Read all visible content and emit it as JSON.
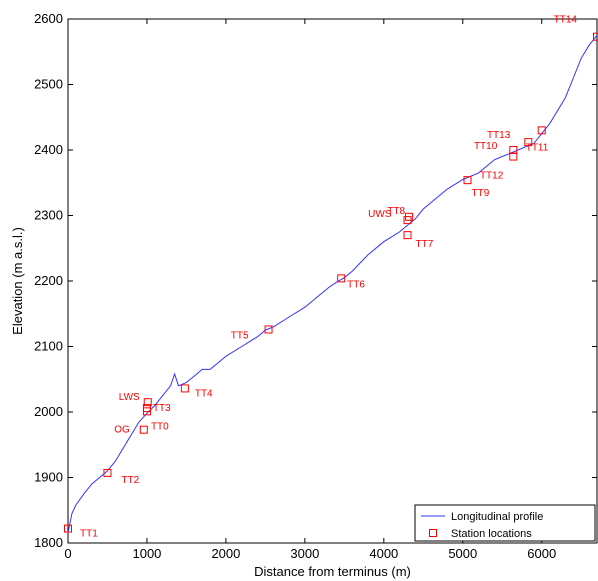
{
  "chart_data": {
    "type": "line",
    "xlabel": "Distance from terminus (m)",
    "ylabel": "Elevation (m a.s.l.)",
    "xlim": [
      0,
      6700
    ],
    "ylim": [
      1800,
      2600
    ],
    "x_ticks": [
      0,
      1000,
      2000,
      3000,
      4000,
      5000,
      6000
    ],
    "y_ticks": [
      1800,
      1900,
      2000,
      2100,
      2200,
      2300,
      2400,
      2500,
      2600
    ],
    "grid": false,
    "legend": {
      "placement": "bottom-right",
      "entries": [
        "Longitudinal profile",
        "Station locations"
      ]
    },
    "colors": {
      "profile": "#3333ff",
      "stations": "#ff0000"
    },
    "series": [
      {
        "name": "Longitudinal profile",
        "type": "line",
        "x": [
          0,
          50,
          100,
          200,
          300,
          400,
          500,
          600,
          700,
          800,
          900,
          1000,
          1100,
          1200,
          1300,
          1350,
          1400,
          1500,
          1600,
          1700,
          1800,
          1900,
          2000,
          2200,
          2400,
          2500,
          2600,
          2800,
          3000,
          3200,
          3300,
          3400,
          3500,
          3600,
          3800,
          4000,
          4200,
          4300,
          4400,
          4500,
          4700,
          4800,
          5000,
          5200,
          5400,
          5500,
          5600,
          5700,
          5800,
          5900,
          6000,
          6100,
          6200,
          6300,
          6400,
          6500,
          6600,
          6700
        ],
        "y": [
          1815,
          1845,
          1858,
          1875,
          1890,
          1900,
          1910,
          1925,
          1945,
          1965,
          1985,
          1998,
          2010,
          2025,
          2040,
          2058,
          2040,
          2045,
          2055,
          2065,
          2065,
          2075,
          2085,
          2100,
          2115,
          2125,
          2130,
          2145,
          2160,
          2180,
          2190,
          2198,
          2205,
          2215,
          2240,
          2260,
          2275,
          2285,
          2295,
          2310,
          2330,
          2340,
          2355,
          2365,
          2385,
          2390,
          2395,
          2400,
          2405,
          2410,
          2425,
          2440,
          2460,
          2480,
          2510,
          2540,
          2560,
          2575
        ]
      },
      {
        "name": "Station locations",
        "type": "scatter",
        "points": [
          {
            "label": "TT1",
            "x": 0,
            "y": 1822
          },
          {
            "label": "TT2",
            "x": 500,
            "y": 1907
          },
          {
            "label": "OG",
            "x": 960,
            "y": 1973
          },
          {
            "label": "TT0",
            "x": 1000,
            "y": 2001
          },
          {
            "label": "TT3",
            "x": 1000,
            "y": 2006
          },
          {
            "label": "LWS",
            "x": 1010,
            "y": 2015
          },
          {
            "label": "TT4",
            "x": 1480,
            "y": 2036
          },
          {
            "label": "TT5",
            "x": 2540,
            "y": 2126
          },
          {
            "label": "TT6",
            "x": 3460,
            "y": 2204
          },
          {
            "label": "UWS",
            "x": 4300,
            "y": 2293
          },
          {
            "label": "TT8",
            "x": 4320,
            "y": 2298
          },
          {
            "label": "TT7",
            "x": 4300,
            "y": 2270
          },
          {
            "label": "TT9",
            "x": 5060,
            "y": 2354
          },
          {
            "label": "TT10",
            "x": 5640,
            "y": 2400
          },
          {
            "label": "TT12",
            "x": 5640,
            "y": 2390
          },
          {
            "label": "TT13",
            "x": 5830,
            "y": 2412
          },
          {
            "label": "TT11",
            "x": 6000,
            "y": 2430
          },
          {
            "label": "TT14",
            "x": 6700,
            "y": 2573
          }
        ]
      }
    ]
  }
}
